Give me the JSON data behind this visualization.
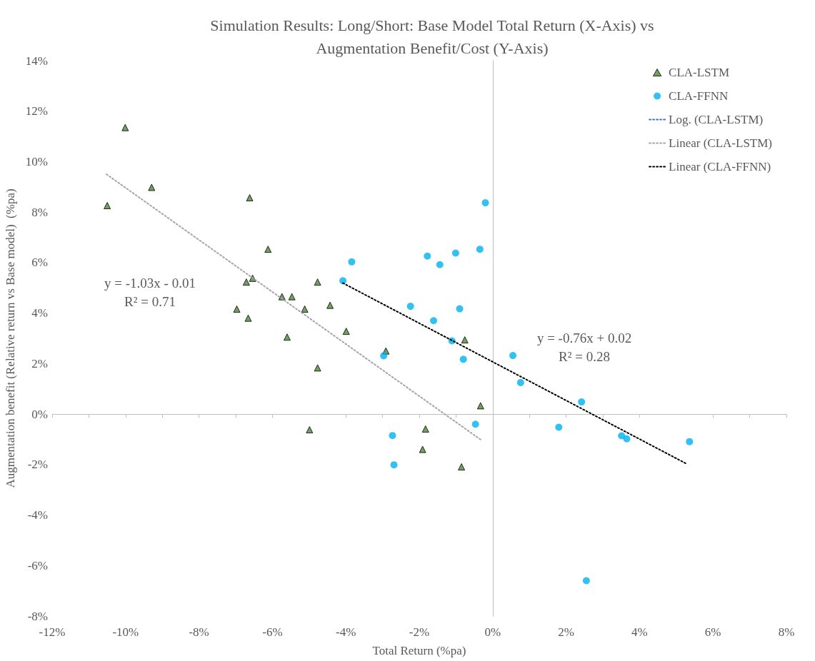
{
  "chart_data": {
    "type": "scatter",
    "title": "Simulation Results: Long/Short: Base Model Total Return (X-Axis) vs\nAugmentation Benefit/Cost (Y-Axis)",
    "xlabel": "Total Return (%pa)",
    "ylabel": "Augmentation benefit (Relative return vs Base model)  (%pa)",
    "xlim": [
      -12,
      8
    ],
    "ylim": [
      -8,
      14
    ],
    "xticks": [
      {
        "value": -12,
        "label": "-12%"
      },
      {
        "value": -10,
        "label": "-10%"
      },
      {
        "value": -8,
        "label": "-8%"
      },
      {
        "value": -6,
        "label": "-6%"
      },
      {
        "value": -4,
        "label": "-4%"
      },
      {
        "value": -2,
        "label": "-2%"
      },
      {
        "value": 0,
        "label": "0%"
      },
      {
        "value": 2,
        "label": "2%"
      },
      {
        "value": 4,
        "label": "4%"
      },
      {
        "value": 6,
        "label": "6%"
      },
      {
        "value": 8,
        "label": "8%"
      }
    ],
    "yticks": [
      {
        "value": -8,
        "label": "-8%"
      },
      {
        "value": -6,
        "label": "-6%"
      },
      {
        "value": -4,
        "label": "-4%"
      },
      {
        "value": -2,
        "label": "-2%"
      },
      {
        "value": 0,
        "label": "0%"
      },
      {
        "value": 2,
        "label": "2%"
      },
      {
        "value": 4,
        "label": "4%"
      },
      {
        "value": 6,
        "label": "6%"
      },
      {
        "value": 8,
        "label": "8%"
      },
      {
        "value": 10,
        "label": "10%"
      },
      {
        "value": 12,
        "label": "12%"
      },
      {
        "value": 14,
        "label": "14%"
      }
    ],
    "legend": "top right",
    "series": [
      {
        "name": "CLA-LSTM",
        "type": "scatter",
        "marker": "triangle",
        "color": "#4e8a3a",
        "x": [
          -10.01,
          -9.29,
          -10.5,
          -6.62,
          -6.12,
          -6.71,
          -6.54,
          -4.77,
          -5.74,
          -5.47,
          -6.97,
          -5.12,
          -4.43,
          -6.66,
          -5.6,
          -4.77,
          -4.99,
          -3.99,
          -2.91,
          -0.76,
          -0.33,
          -1.83,
          -1.91,
          -0.85
        ],
        "values": [
          11.35,
          8.98,
          8.26,
          8.57,
          6.53,
          5.23,
          5.38,
          5.23,
          4.65,
          4.65,
          4.16,
          4.16,
          4.31,
          3.8,
          3.05,
          1.83,
          -0.62,
          3.28,
          2.5,
          2.94,
          0.33,
          -0.59,
          -1.4,
          -2.09
        ]
      },
      {
        "name": "CLA-FFNN",
        "type": "scatter",
        "marker": "circle",
        "color": "#00b0f0",
        "x": [
          -0.2,
          -0.35,
          -1.01,
          -1.78,
          -1.44,
          -3.84,
          -4.08,
          -2.24,
          -0.9,
          -1.61,
          -1.11,
          -2.97,
          -0.8,
          -0.47,
          -2.73,
          -2.69,
          0.55,
          0.76,
          2.42,
          1.8,
          3.51,
          3.65,
          5.36,
          2.55
        ],
        "values": [
          8.37,
          6.53,
          6.38,
          6.26,
          5.92,
          6.03,
          5.28,
          4.27,
          4.17,
          3.7,
          2.9,
          2.31,
          2.17,
          -0.4,
          -0.85,
          -2.01,
          2.32,
          1.25,
          0.48,
          -0.52,
          -0.86,
          -0.98,
          -1.09,
          -6.6
        ]
      },
      {
        "name": "Log. (CLA-LSTM)",
        "type": "line",
        "marker": "none",
        "line_style": "dotted",
        "color": "#4472c4"
      },
      {
        "name": "Linear (CLA-LSTM)",
        "type": "line",
        "marker": "none",
        "line_style": "dotted",
        "color": "#a6a6a6",
        "x": [
          -10.52,
          -0.33
        ],
        "values": [
          9.5,
          -1.01
        ]
      },
      {
        "name": "Linear (CLA-FFNN)",
        "type": "line",
        "marker": "none",
        "line_style": "dotted",
        "color": "#000000",
        "x": [
          -4.08,
          5.28
        ],
        "values": [
          5.19,
          -1.97
        ]
      }
    ],
    "annotations": [
      "y = -1.03x - 0.01\nR² = 0.71",
      "y = -0.76x + 0.02\nR² = 0.28"
    ]
  }
}
